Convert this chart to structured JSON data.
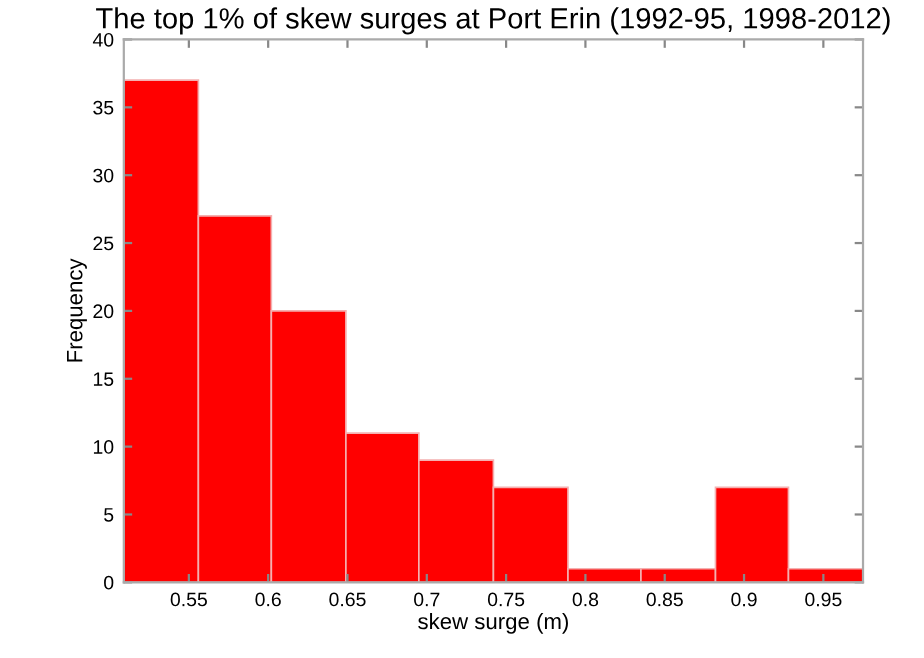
{
  "chart_data": {
    "type": "histogram",
    "title": "The top 1% of skew surges at Port Erin (1992-95, 1998-2012)",
    "xlabel": "skew surge (m)",
    "ylabel": "Frequency",
    "bins": [
      0.509,
      0.556,
      0.602,
      0.649,
      0.695,
      0.742,
      0.789,
      0.835,
      0.882,
      0.928,
      0.975
    ],
    "values": [
      37,
      27,
      20,
      11,
      9,
      7,
      1,
      1,
      7,
      1
    ],
    "color": "#ff0000",
    "xlim": [
      0.509,
      0.975
    ],
    "xticks": [
      0.55,
      0.6,
      0.65,
      0.7,
      0.75,
      0.8,
      0.85,
      0.9,
      0.95
    ],
    "ylim": [
      0,
      40
    ],
    "yticks": [
      0,
      5,
      10,
      15,
      20,
      25,
      30,
      35,
      40
    ],
    "grid": false,
    "legend": false
  }
}
